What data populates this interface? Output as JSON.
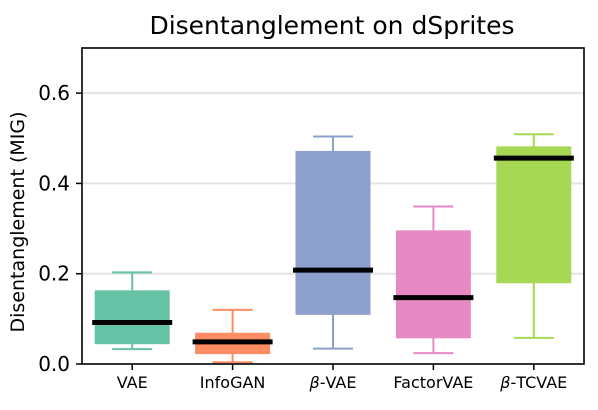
{
  "chart_data": {
    "type": "box",
    "title": "Disentanglement on dSprites",
    "xlabel": "",
    "ylabel": "Disentanglement (MIG)",
    "ylim": [
      0,
      0.7
    ],
    "yticks": [
      "0.0",
      "0.2",
      "0.4",
      "0.6"
    ],
    "ytick_values": [
      0,
      0.2,
      0.4,
      0.6
    ],
    "grid": "horizontal",
    "categories": [
      {
        "label": "VAE",
        "greek": "",
        "suffix": "VAE",
        "color": "#66c2a5",
        "whisker_low": 0.033,
        "q1": 0.045,
        "median": 0.092,
        "q3": 0.162,
        "whisker_high": 0.203
      },
      {
        "label": "InfoGAN",
        "greek": "",
        "suffix": "InfoGAN",
        "color": "#fc8d62",
        "whisker_low": 0.004,
        "q1": 0.023,
        "median": 0.049,
        "q3": 0.068,
        "whisker_high": 0.12
      },
      {
        "label": "β-VAE",
        "greek": "β",
        "suffix": "-VAE",
        "color": "#8da0cb",
        "whisker_low": 0.034,
        "q1": 0.11,
        "median": 0.208,
        "q3": 0.471,
        "whisker_high": 0.504
      },
      {
        "label": "FactorVAE",
        "greek": "",
        "suffix": "FactorVAE",
        "color": "#e78ac3",
        "whisker_low": 0.024,
        "q1": 0.058,
        "median": 0.147,
        "q3": 0.295,
        "whisker_high": 0.349
      },
      {
        "label": "β-TCVAE",
        "greek": "β",
        "suffix": "-TCVAE",
        "color": "#a6d854",
        "whisker_low": 0.058,
        "q1": 0.18,
        "median": 0.456,
        "q3": 0.481,
        "whisker_high": 0.509
      }
    ]
  }
}
